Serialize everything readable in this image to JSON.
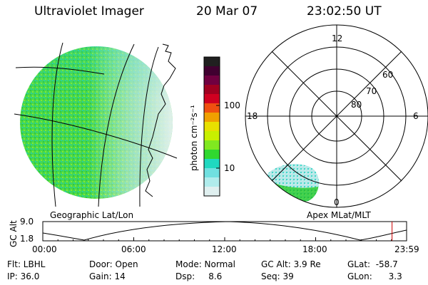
{
  "header": {
    "instrument": "Ultraviolet Imager",
    "date": "20 Mar 07",
    "time": "23:02:50 UT"
  },
  "geo_panel": {
    "caption": "Geographic Lat/Lon"
  },
  "colorbar": {
    "unit_label": "photon cm⁻²s⁻¹",
    "tick_100": "100",
    "tick_10": "10",
    "colors": [
      "#202020",
      "#400030",
      "#700040",
      "#a00020",
      "#d00020",
      "#f05010",
      "#f0a000",
      "#e8e000",
      "#c8f000",
      "#80e820",
      "#30d830",
      "#20d8c0",
      "#70e0e0",
      "#b0ecec",
      "#e0f0f0"
    ]
  },
  "polar_plot": {
    "caption": "Apex MLat/MLT",
    "mlt_top": "12",
    "mlt_left": "18",
    "mlt_right": "6",
    "mlt_bottom": "0",
    "lat_60": "60",
    "lat_70": "70",
    "lat_80": "80"
  },
  "altitude_strip": {
    "ylabel": "GC Alt",
    "ymax": "9.0",
    "ymin": "1.8",
    "ticks": [
      "00:00",
      "06:00",
      "12:00",
      "18:00",
      "23:59"
    ],
    "current_time_fraction": 0.96
  },
  "info": {
    "filter": "Flt: LBHL",
    "ip": "IP: 36.0",
    "door": "Door: Open",
    "gain": "Gain: 14",
    "mode": "Mode: Normal",
    "dsp": "Dsp:     8.6",
    "gc_alt": "GC Alt: 3.9 Re",
    "seq": "Seq: 39",
    "glat": "GLat:  -58.7",
    "glon": "GLon:      3.3"
  }
}
